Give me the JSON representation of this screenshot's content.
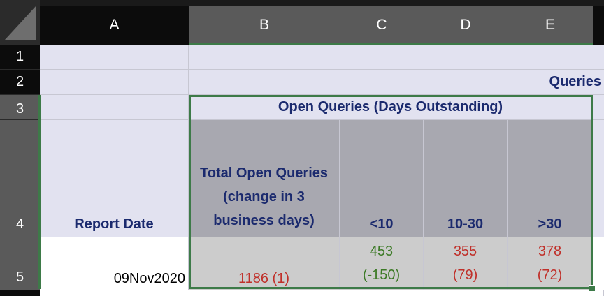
{
  "columns": [
    "A",
    "B",
    "C",
    "D",
    "E"
  ],
  "rows": [
    "1",
    "2",
    "3",
    "4",
    "5"
  ],
  "cells": {
    "e2": "Queries",
    "b3": "Open Queries (Days Outstanding)",
    "a4": "Report Date",
    "b4": "Total Open Queries (change in 3 business days)",
    "c4": "<10",
    "d4": "10-30",
    "e4": ">30",
    "a5": "09Nov2020",
    "b5": "1186 (1)",
    "c5_line1": "453",
    "c5_line2": "(-150)",
    "d5_line1": "355",
    "d5_line2": "(79)",
    "e5_line1": "378",
    "e5_line2": "(72)"
  },
  "colors": {
    "header_text": "#1b2a6e",
    "positive": "#3c7a26",
    "negative": "#c0302a",
    "selection": "#3d7a48"
  }
}
